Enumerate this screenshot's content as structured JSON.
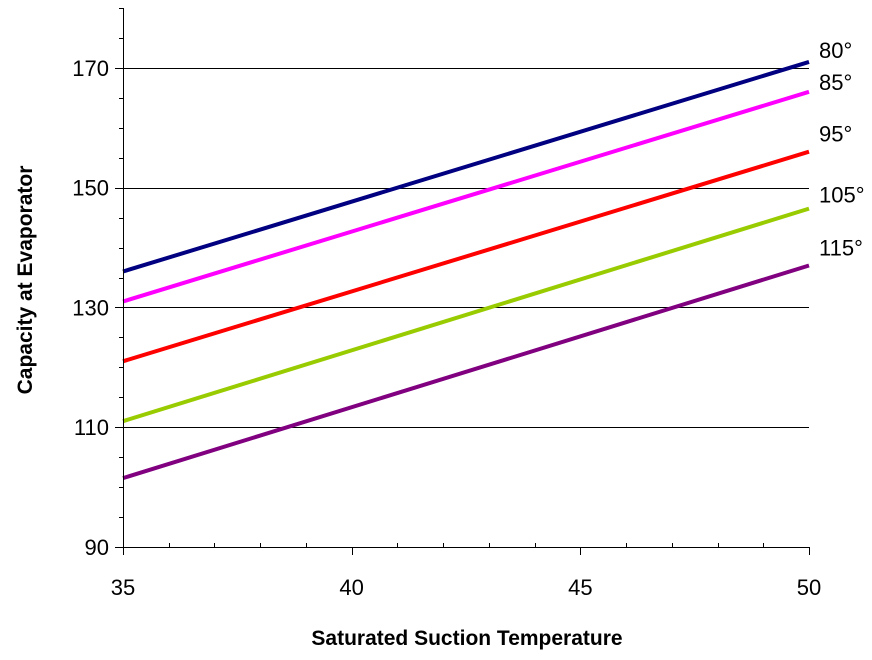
{
  "chart_data": {
    "type": "line",
    "title": "",
    "xlabel": "Saturated Suction Temperature",
    "ylabel": "Capacity at Evaporator",
    "xlim": [
      35,
      50
    ],
    "ylim": [
      90,
      180
    ],
    "x_ticks": [
      35,
      40,
      45,
      50
    ],
    "y_ticks": [
      90,
      110,
      130,
      150,
      170
    ],
    "x_tick_labels": [
      "35",
      "40",
      "45",
      "50"
    ],
    "y_tick_labels": [
      "90",
      "110",
      "130",
      "150",
      "170"
    ],
    "grid": "horizontal major gridlines",
    "legend": "series labels at right end of each line",
    "x": [
      35,
      50
    ],
    "series": [
      {
        "name": "80°",
        "color": "#000080",
        "values": [
          136,
          171
        ]
      },
      {
        "name": "85°",
        "color": "#ff00ff",
        "values": [
          131,
          166
        ]
      },
      {
        "name": "95°",
        "color": "#ff0000",
        "values": [
          121,
          156
        ]
      },
      {
        "name": "105°",
        "color": "#99cc00",
        "values": [
          111,
          146.5
        ]
      },
      {
        "name": "115°",
        "color": "#800080",
        "values": [
          101.5,
          137
        ]
      }
    ]
  }
}
